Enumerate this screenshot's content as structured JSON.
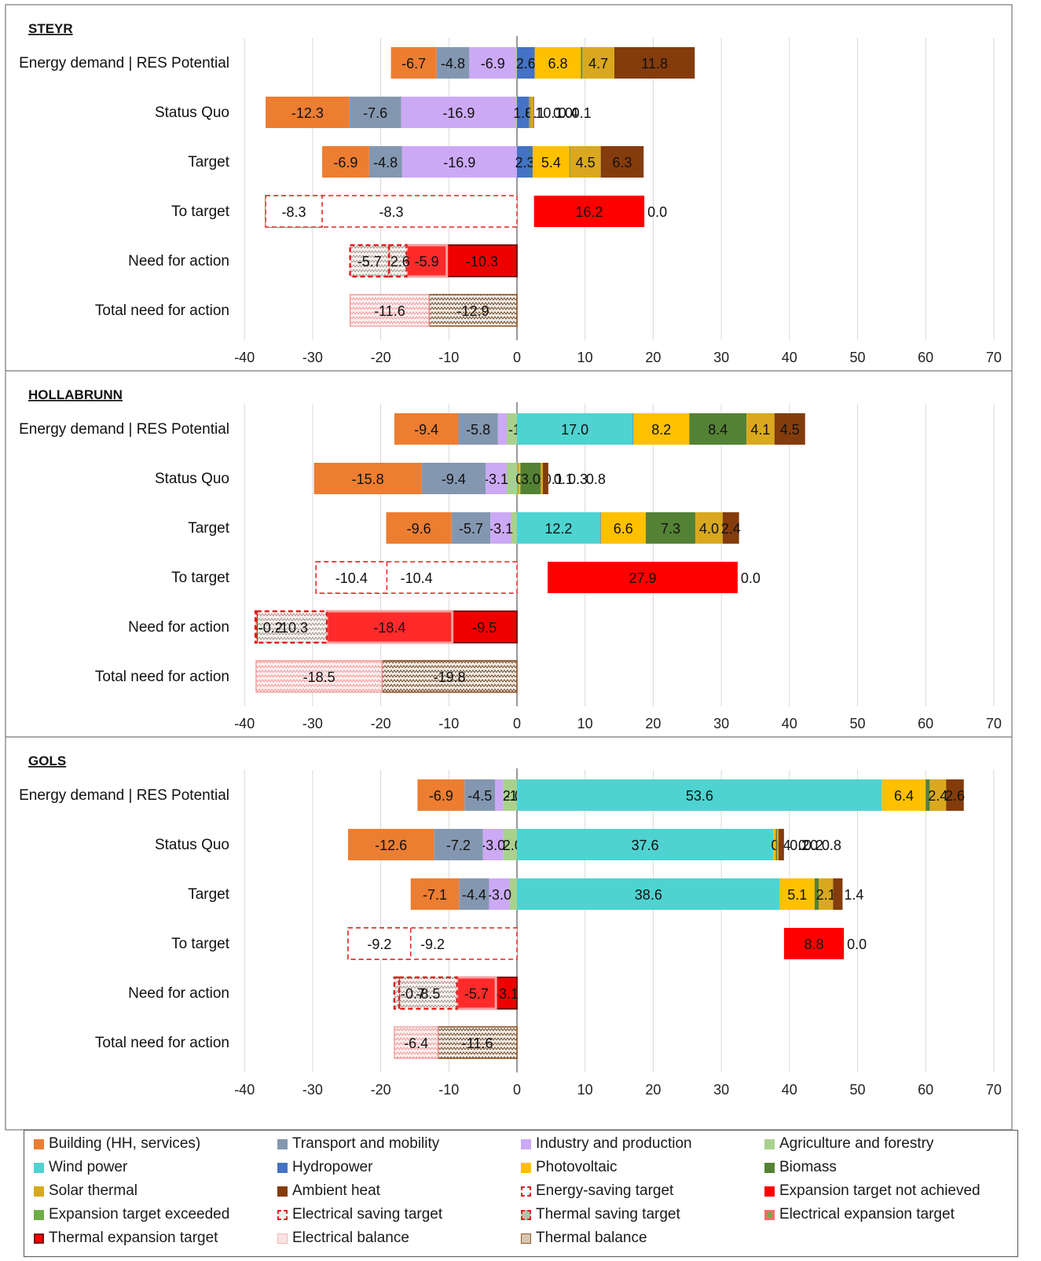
{
  "chart_data": [
    {
      "type": "bar",
      "orientation": "horizontal-stacked",
      "title": "STEYR",
      "xlim": [
        -40,
        70
      ],
      "xticks": [
        -40,
        -30,
        -20,
        -10,
        0,
        10,
        20,
        30,
        40,
        50,
        60,
        70
      ],
      "categories": [
        "Energy demand | RES Potential",
        "Status Quo",
        "Target",
        "To target",
        "Need for action",
        "Total need for action"
      ],
      "rows": [
        {
          "category": "Energy demand | RES Potential",
          "segments": [
            {
              "series": "Agriculture and forestry",
              "value": -0.1
            },
            {
              "series": "Industry and production",
              "value": -6.9
            },
            {
              "series": "Transport and mobility",
              "value": -4.8
            },
            {
              "series": "Building (HH, services)",
              "value": -6.7
            },
            {
              "series": "Hydropower",
              "value": 2.6
            },
            {
              "series": "Photovoltaic",
              "value": 6.8
            },
            {
              "series": "Biomass",
              "value": 0.2
            },
            {
              "series": "Solar thermal",
              "value": 4.7
            },
            {
              "series": "Ambient heat",
              "value": 11.8
            }
          ]
        },
        {
          "category": "Status Quo",
          "segments": [
            {
              "series": "Agriculture and forestry",
              "value": -0.1
            },
            {
              "series": "Industry and production",
              "value": -16.9
            },
            {
              "series": "Transport and mobility",
              "value": -7.6
            },
            {
              "series": "Building (HH, services)",
              "value": -12.3
            },
            {
              "series": "Wind power",
              "value": 0.0
            },
            {
              "series": "Hydropower",
              "value": 1.8
            },
            {
              "series": "Photovoltaic",
              "value": 0.1
            },
            {
              "series": "Biomass",
              "value": 0.1
            },
            {
              "series": "Solar thermal",
              "value": 0.4
            },
            {
              "series": "Ambient heat",
              "value": 0.1
            }
          ]
        },
        {
          "category": "Target",
          "segments": [
            {
              "series": "Agriculture and forestry",
              "value": 0.0
            },
            {
              "series": "Industry and production",
              "value": -16.9
            },
            {
              "series": "Transport and mobility",
              "value": -4.8
            },
            {
              "series": "Building (HH, services)",
              "value": -6.9
            },
            {
              "series": "Hydropower",
              "value": 2.3
            },
            {
              "series": "Photovoltaic",
              "value": 5.4
            },
            {
              "series": "Biomass",
              "value": 0.1
            },
            {
              "series": "Solar thermal",
              "value": 4.5
            },
            {
              "series": "Ambient heat",
              "value": 6.3
            }
          ]
        },
        {
          "category": "To target",
          "segments": [
            {
              "series": "Energy-saving target",
              "value": -8.3
            },
            {
              "series": "Expansion target not achieved",
              "value": 16.2
            },
            {
              "series": "Expansion target exceeded",
              "value": 0.0
            }
          ]
        },
        {
          "category": "Need for action",
          "segments": [
            {
              "series": "Thermal expansion target",
              "value": -10.3
            },
            {
              "series": "Electrical expansion target",
              "value": -5.9
            },
            {
              "series": "Thermal saving target",
              "value": -2.6
            },
            {
              "series": "Electrical saving target",
              "value": -5.7
            }
          ]
        },
        {
          "category": "Total need for action",
          "segments": [
            {
              "series": "Thermal balance",
              "value": -12.9
            },
            {
              "series": "Electrical balance",
              "value": -11.6
            }
          ]
        }
      ]
    },
    {
      "type": "bar",
      "orientation": "horizontal-stacked",
      "title": "HOLLABRUNN",
      "xlim": [
        -40,
        70
      ],
      "xticks": [
        -40,
        -30,
        -20,
        -10,
        0,
        10,
        20,
        30,
        40,
        50,
        60,
        70
      ],
      "categories": [
        "Energy demand | RES Potential",
        "Status Quo",
        "Target",
        "To target",
        "Need for action",
        "Total need for action"
      ],
      "rows": [
        {
          "category": "Energy demand | RES Potential",
          "segments": [
            {
              "series": "Agriculture and forestry",
              "value": -1.5
            },
            {
              "series": "Industry and production",
              "value": -1.3
            },
            {
              "series": "Transport and mobility",
              "value": -5.8
            },
            {
              "series": "Building (HH, services)",
              "value": -9.4
            },
            {
              "series": "Wind power",
              "value": 17.0
            },
            {
              "series": "Hydropower",
              "value": 0.1
            },
            {
              "series": "Photovoltaic",
              "value": 8.2
            },
            {
              "series": "Biomass",
              "value": 8.4
            },
            {
              "series": "Solar thermal",
              "value": 4.1
            },
            {
              "series": "Ambient heat",
              "value": 4.5
            }
          ]
        },
        {
          "category": "Status Quo",
          "segments": [
            {
              "series": "Agriculture and forestry",
              "value": -1.5
            },
            {
              "series": "Industry and production",
              "value": -3.1
            },
            {
              "series": "Transport and mobility",
              "value": -9.4
            },
            {
              "series": "Building (HH, services)",
              "value": -15.8
            },
            {
              "series": "Wind power",
              "value": 0.1
            },
            {
              "series": "Hydropower",
              "value": 0.1
            },
            {
              "series": "Photovoltaic",
              "value": 0.3
            },
            {
              "series": "Biomass",
              "value": 3.0
            },
            {
              "series": "Solar thermal",
              "value": 0.3
            },
            {
              "series": "Ambient heat",
              "value": 0.8
            }
          ]
        },
        {
          "category": "Target",
          "segments": [
            {
              "series": "Agriculture and forestry",
              "value": -0.8
            },
            {
              "series": "Industry and production",
              "value": -3.1
            },
            {
              "series": "Transport and mobility",
              "value": -5.7
            },
            {
              "series": "Building (HH, services)",
              "value": -9.6
            },
            {
              "series": "Wind power",
              "value": 12.2
            },
            {
              "series": "Hydropower",
              "value": 0.1
            },
            {
              "series": "Photovoltaic",
              "value": 6.6
            },
            {
              "series": "Biomass",
              "value": 7.3
            },
            {
              "series": "Solar thermal",
              "value": 4.0
            },
            {
              "series": "Ambient heat",
              "value": 2.4
            }
          ]
        },
        {
          "category": "To target",
          "segments": [
            {
              "series": "Energy-saving target",
              "value": -10.4
            },
            {
              "series": "Expansion target not achieved",
              "value": 27.9
            },
            {
              "series": "Expansion target exceeded",
              "value": 0.0
            }
          ]
        },
        {
          "category": "Need for action",
          "segments": [
            {
              "series": "Thermal expansion target",
              "value": -9.5
            },
            {
              "series": "Electrical expansion target",
              "value": -18.4
            },
            {
              "series": "Thermal saving target",
              "value": -10.3
            },
            {
              "series": "Electrical saving target",
              "value": -0.2
            }
          ]
        },
        {
          "category": "Total need for action",
          "segments": [
            {
              "series": "Thermal balance",
              "value": -19.8
            },
            {
              "series": "Electrical balance",
              "value": -18.5
            }
          ]
        }
      ]
    },
    {
      "type": "bar",
      "orientation": "horizontal-stacked",
      "title": "GOLS",
      "xlim": [
        -40,
        70
      ],
      "xticks": [
        -40,
        -30,
        -20,
        -10,
        0,
        10,
        20,
        30,
        40,
        50,
        60,
        70
      ],
      "categories": [
        "Energy demand | RES Potential",
        "Status Quo",
        "Target",
        "To target",
        "Need for action",
        "Total need for action"
      ],
      "rows": [
        {
          "category": "Energy demand | RES Potential",
          "segments": [
            {
              "series": "Agriculture and forestry",
              "value": -2.0
            },
            {
              "series": "Industry and production",
              "value": -1.2
            },
            {
              "series": "Transport and mobility",
              "value": -4.5
            },
            {
              "series": "Building (HH, services)",
              "value": -6.9
            },
            {
              "series": "Wind power",
              "value": 53.6
            },
            {
              "series": "Hydropower",
              "value": 0.0
            },
            {
              "series": "Photovoltaic",
              "value": 6.4
            },
            {
              "series": "Biomass",
              "value": 0.6
            },
            {
              "series": "Solar thermal",
              "value": 2.4
            },
            {
              "series": "Ambient heat",
              "value": 2.6
            }
          ]
        },
        {
          "category": "Status Quo",
          "segments": [
            {
              "series": "Agriculture and forestry",
              "value": -2.0
            },
            {
              "series": "Industry and production",
              "value": -3.0
            },
            {
              "series": "Transport and mobility",
              "value": -7.2
            },
            {
              "series": "Building (HH, services)",
              "value": -12.6
            },
            {
              "series": "Wind power",
              "value": 37.6
            },
            {
              "series": "Hydropower",
              "value": 0.0
            },
            {
              "series": "Photovoltaic",
              "value": 0.4
            },
            {
              "series": "Biomass",
              "value": 0.2
            },
            {
              "series": "Solar thermal",
              "value": 0.2
            },
            {
              "series": "Ambient heat",
              "value": 0.8
            }
          ]
        },
        {
          "category": "Target",
          "segments": [
            {
              "series": "Agriculture and forestry",
              "value": -1.1
            },
            {
              "series": "Industry and production",
              "value": -3.0
            },
            {
              "series": "Transport and mobility",
              "value": -4.4
            },
            {
              "series": "Building (HH, services)",
              "value": -7.1
            },
            {
              "series": "Wind power",
              "value": 38.6
            },
            {
              "series": "Hydropower",
              "value": 0.0
            },
            {
              "series": "Photovoltaic",
              "value": 5.1
            },
            {
              "series": "Biomass",
              "value": 0.6
            },
            {
              "series": "Solar thermal",
              "value": 2.1
            },
            {
              "series": "Ambient heat",
              "value": 1.4
            }
          ]
        },
        {
          "category": "To target",
          "segments": [
            {
              "series": "Energy-saving target",
              "value": -9.2
            },
            {
              "series": "Expansion target not achieved",
              "value": 8.8
            },
            {
              "series": "Expansion target exceeded",
              "value": 0.0
            }
          ]
        },
        {
          "category": "Need for action",
          "segments": [
            {
              "series": "Thermal expansion target",
              "value": -3.1
            },
            {
              "series": "Electrical expansion target",
              "value": -5.7
            },
            {
              "series": "Thermal saving target",
              "value": -8.5
            },
            {
              "series": "Electrical saving target",
              "value": -0.7
            }
          ]
        },
        {
          "category": "Total need for action",
          "segments": [
            {
              "series": "Thermal balance",
              "value": -11.6
            },
            {
              "series": "Electrical balance",
              "value": -6.4
            }
          ]
        }
      ]
    }
  ],
  "legend": {
    "placement": "bottom",
    "items": [
      {
        "label": "Building (HH, services)",
        "color": "#ED7D31",
        "style": "solid"
      },
      {
        "label": "Transport and mobility",
        "color": "#8497B0",
        "style": "solid"
      },
      {
        "label": "Industry and production",
        "color": "#CCA9F5",
        "style": "solid"
      },
      {
        "label": "Agriculture and forestry",
        "color": "#A9D18E",
        "style": "solid"
      },
      {
        "label": "Wind power",
        "color": "#4ED3D0",
        "style": "solid"
      },
      {
        "label": "Hydropower",
        "color": "#4472C4",
        "style": "solid"
      },
      {
        "label": "Photovoltaic",
        "color": "#FFC000",
        "style": "solid"
      },
      {
        "label": "Biomass",
        "color": "#548235",
        "style": "solid"
      },
      {
        "label": "Solar thermal",
        "color": "#D9A81E",
        "style": "solid"
      },
      {
        "label": "Ambient heat",
        "color": "#843C0C",
        "style": "solid"
      },
      {
        "label": "Energy-saving target",
        "color": "#E02020",
        "style": "dashed"
      },
      {
        "label": "Expansion target not achieved",
        "color": "#FF0000",
        "style": "solid"
      },
      {
        "label": "Expansion target exceeded",
        "color": "#70AD47",
        "style": "solid"
      },
      {
        "label": "Electrical saving target",
        "color": "#E02020",
        "style": "dashed-pattern"
      },
      {
        "label": "Thermal saving target",
        "color": "#E02020",
        "style": "dashed-pattern-dark"
      },
      {
        "label": "Electrical expansion target",
        "color": "#FF6B6B",
        "style": "bordered-light"
      },
      {
        "label": "Thermal expansion target",
        "color": "#FF0000",
        "style": "bordered-dark"
      },
      {
        "label": "Electrical balance",
        "color": "#F4B6B6",
        "style": "pattern-light"
      },
      {
        "label": "Thermal balance",
        "color": "#8B5A2B",
        "style": "pattern-dark"
      }
    ]
  }
}
